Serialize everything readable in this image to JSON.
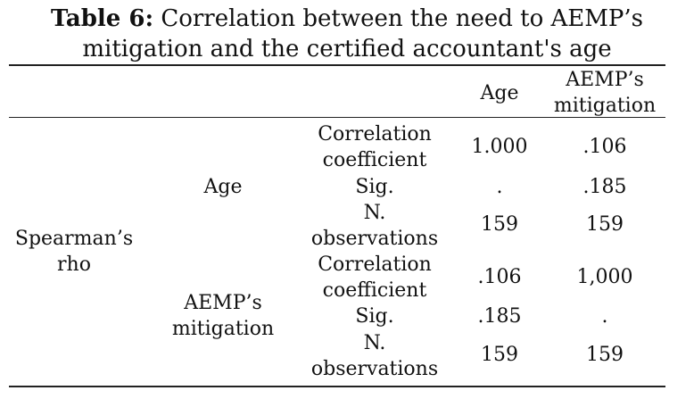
{
  "caption": {
    "label": "Table 6:",
    "line1": "Correlation between the need to AEMP’s",
    "line2": "mitigation and the certified accountant's age"
  },
  "header": {
    "col_age": "Age",
    "col_aemp_line1": "AEMP’s",
    "col_aemp_line2": "mitigation"
  },
  "table": {
    "method_line1": "Spearman’s",
    "method_line2": "rho",
    "groups": [
      {
        "var_line1": "Age",
        "var_line2": "",
        "rows": [
          {
            "stat_line1": "Correlation",
            "stat_line2": "coefficient",
            "age": "1.000",
            "aemp": ".106"
          },
          {
            "stat_line1": "Sig.",
            "stat_line2": "",
            "age": ".",
            "aemp": ".185"
          },
          {
            "stat_line1": "N.",
            "stat_line2": "observations",
            "age": "159",
            "aemp": "159"
          }
        ]
      },
      {
        "var_line1": "AEMP’s",
        "var_line2": "mitigation",
        "rows": [
          {
            "stat_line1": "Correlation",
            "stat_line2": "coefficient",
            "age": ".106",
            "aemp": "1,000"
          },
          {
            "stat_line1": "Sig.",
            "stat_line2": "",
            "age": ".185",
            "aemp": "."
          },
          {
            "stat_line1": "N.",
            "stat_line2": "observations",
            "age": "159",
            "aemp": "159"
          }
        ]
      }
    ]
  }
}
